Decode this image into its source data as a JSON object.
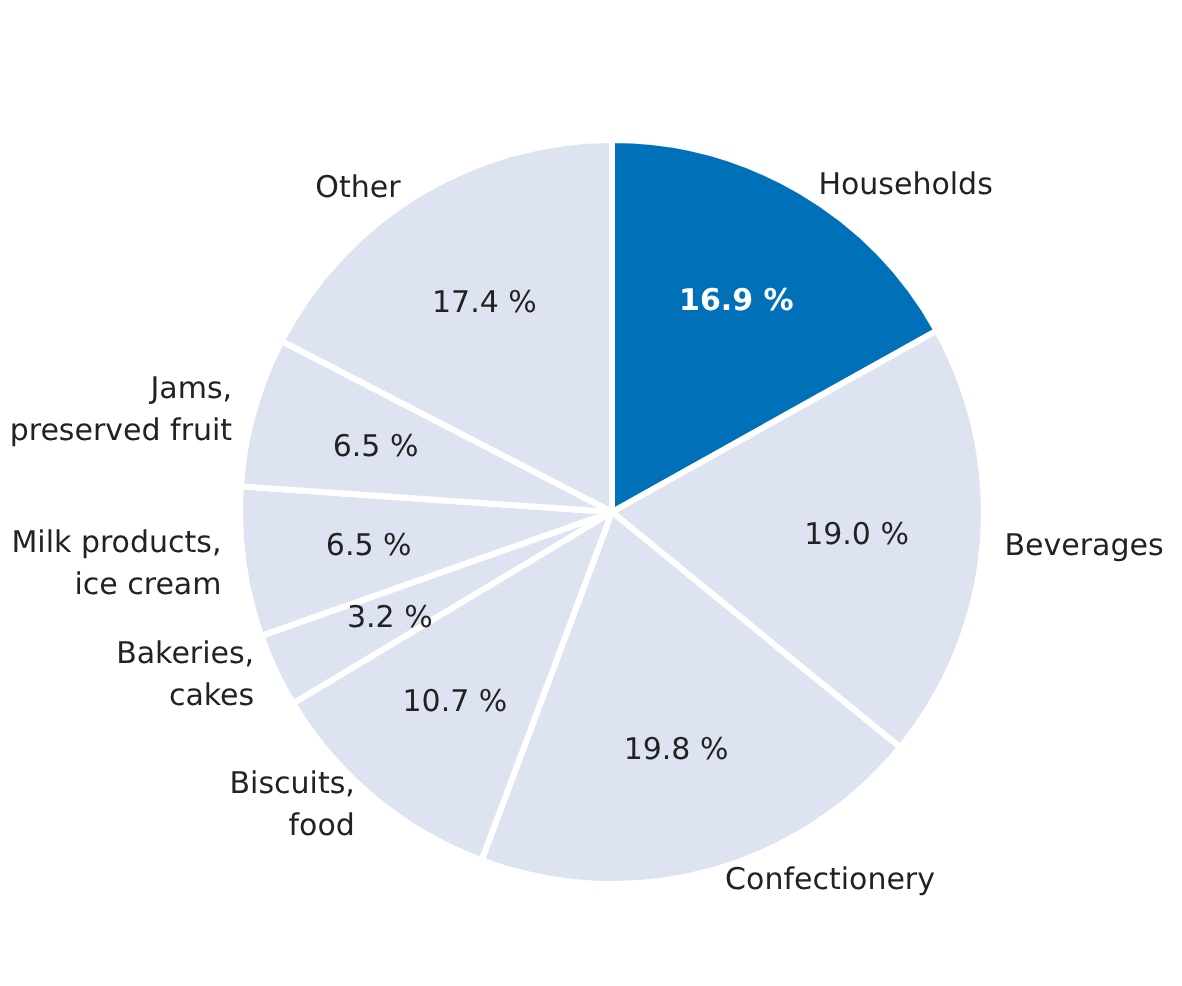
{
  "chart_data": {
    "type": "pie",
    "categories": [
      "Households",
      "Beverages",
      "Confectionery",
      "Biscuits,\nfood",
      "Bakeries,\ncakes",
      "Milk products,\nice cream",
      "Jams,\npreserved fruit",
      "Other"
    ],
    "values": [
      16.9,
      19.0,
      19.8,
      10.7,
      3.2,
      6.5,
      6.5,
      17.4
    ],
    "value_labels": [
      "16.9 %",
      "19.0 %",
      "19.8 %",
      "10.7 %",
      "3.2 %",
      "6.5 %",
      "6.5 %",
      "17.4 %"
    ],
    "colors": [
      "#0071b9",
      "#dde3f1",
      "#dde3f1",
      "#dde3f1",
      "#dde3f1",
      "#dde3f1",
      "#dde3f1",
      "#dde3f1"
    ],
    "legend": false
  }
}
